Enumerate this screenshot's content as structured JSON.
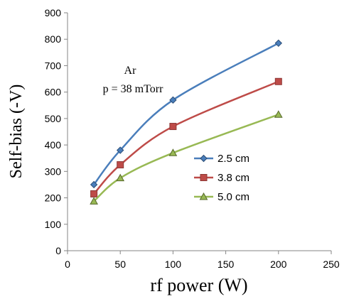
{
  "chart_data": {
    "type": "line",
    "xlabel": "rf power (W)",
    "ylabel": "Self-bias (-V)",
    "xlim": [
      0,
      250
    ],
    "ylim": [
      0,
      900
    ],
    "xticks": [
      0,
      50,
      100,
      150,
      200,
      250
    ],
    "yticks": [
      0,
      100,
      200,
      300,
      400,
      500,
      600,
      700,
      800,
      900
    ],
    "grid": false,
    "legend_position": "lower-right",
    "annotations": [
      "Ar",
      "p = 38 mTorr"
    ],
    "series": [
      {
        "name": "2.5 cm",
        "marker": "diamond",
        "color": "#4a7ebb",
        "x": [
          25,
          50,
          100,
          200
        ],
        "y": [
          250,
          380,
          570,
          785
        ]
      },
      {
        "name": "3.8 cm",
        "marker": "square",
        "color": "#be4b48",
        "x": [
          25,
          50,
          100,
          200
        ],
        "y": [
          215,
          325,
          470,
          640
        ]
      },
      {
        "name": "5.0 cm",
        "marker": "triangle",
        "color": "#98b954",
        "x": [
          25,
          50,
          100,
          200
        ],
        "y": [
          187,
          275,
          370,
          515
        ]
      }
    ]
  }
}
